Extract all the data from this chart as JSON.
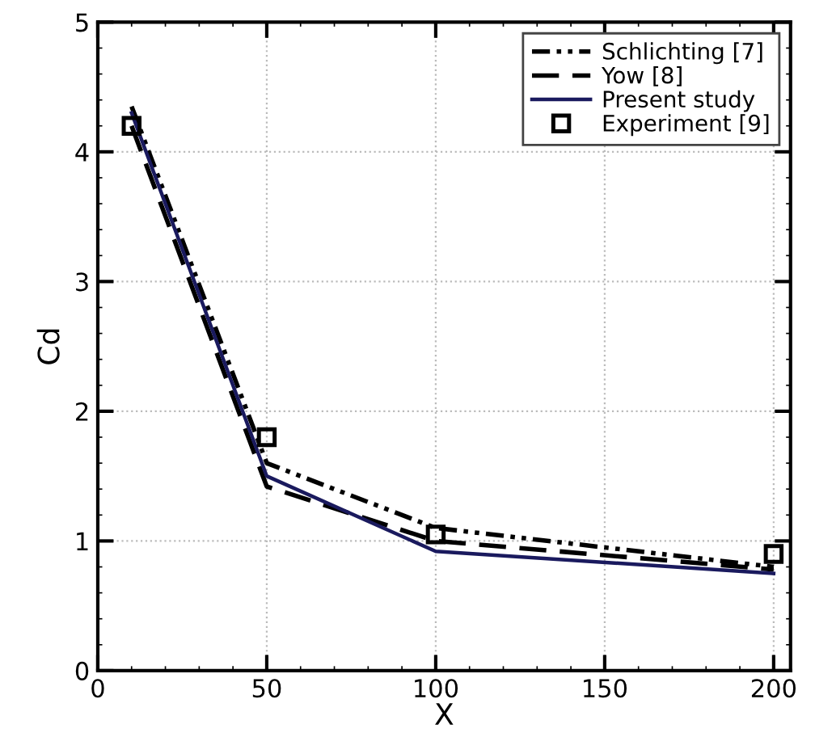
{
  "chart_data": {
    "type": "line",
    "xlabel": "X",
    "ylabel": "Cd",
    "xlim": [
      0,
      205
    ],
    "ylim": [
      0,
      5
    ],
    "xticks": [
      0,
      50,
      100,
      150,
      200
    ],
    "yticks": [
      0,
      1,
      2,
      3,
      4,
      5
    ],
    "grid": true,
    "legend": "top right",
    "series": [
      {
        "name": "Schlichting [7]",
        "color": "#000000",
        "line_style": "dashdotdot",
        "marker": "none",
        "x": [
          10,
          50,
          100,
          200
        ],
        "values": [
          4.35,
          1.6,
          1.1,
          0.8
        ]
      },
      {
        "name": "Yow [8]",
        "color": "#000000",
        "line_style": "dashed",
        "marker": "none",
        "x": [
          10,
          50,
          100,
          200
        ],
        "values": [
          4.2,
          1.42,
          1.0,
          0.78
        ]
      },
      {
        "name": "Present study",
        "color": "#1a1a5e",
        "line_style": "solid",
        "marker": "none",
        "x": [
          10,
          50,
          100,
          200
        ],
        "values": [
          4.3,
          1.5,
          0.92,
          0.75
        ]
      },
      {
        "name": "Experiment [9]",
        "type": "scatter",
        "color": "#000000",
        "marker": "square",
        "x": [
          10,
          50,
          100,
          200
        ],
        "values": [
          4.2,
          1.8,
          1.05,
          0.9
        ]
      }
    ]
  }
}
